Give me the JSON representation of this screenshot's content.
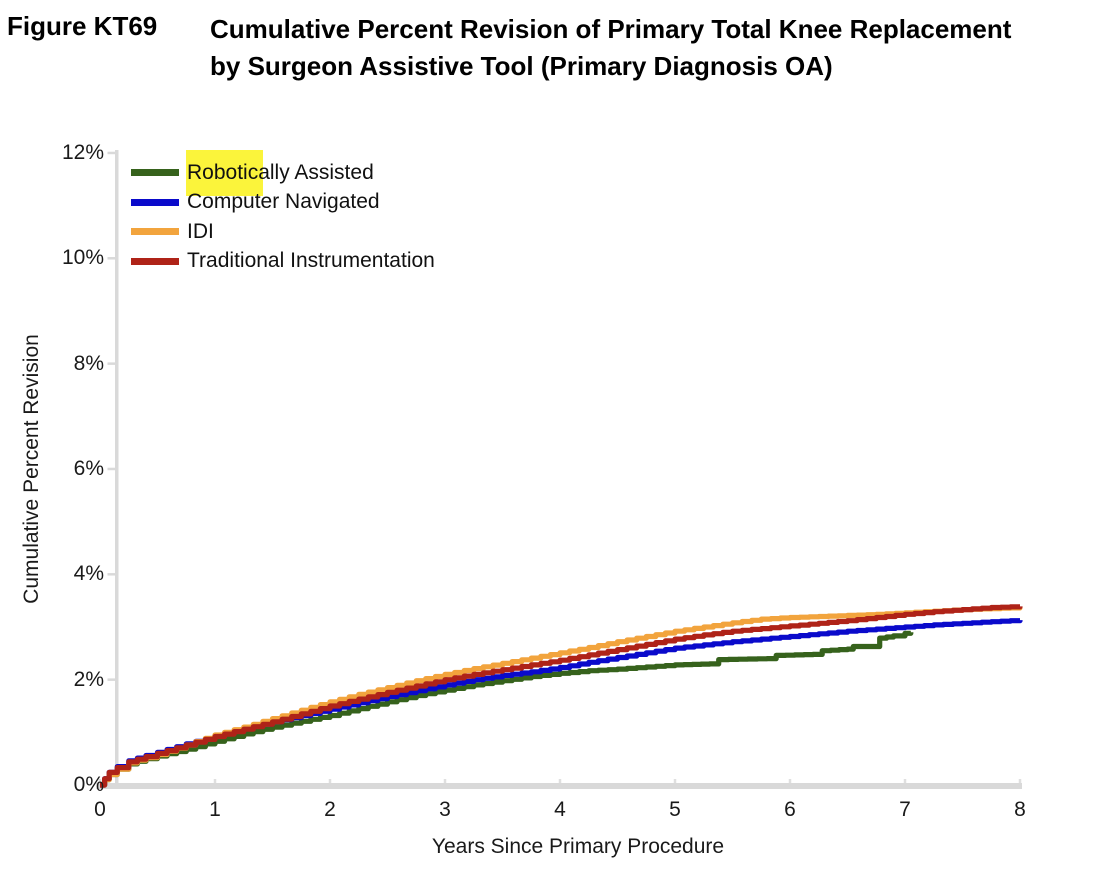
{
  "figure": {
    "label": "Figure KT69",
    "title_line1": "Cumulative Percent Revision of Primary Total Knee Replacement",
    "title_line2": "by Surgeon Assistive Tool (Primary Diagnosis OA)"
  },
  "legend": {
    "position": "top-left",
    "highlight_color": "#FBF43B",
    "highlighted_text": "Robotic",
    "items": [
      {
        "label": "Robotically Assisted",
        "color": "#36621C"
      },
      {
        "label": "Computer Navigated",
        "color": "#0A0ACB"
      },
      {
        "label": "IDI",
        "color": "#F2A43D"
      },
      {
        "label": "Traditional Instrumentation",
        "color": "#AF2318"
      }
    ]
  },
  "colors": {
    "axis_line": "#D9D9D9",
    "tick_mark": "#DFDFDF",
    "text": "#1a1a1a"
  },
  "chart_data": {
    "type": "line",
    "title": "Cumulative Percent Revision of Primary Total Knee Replacement by Surgeon Assistive Tool (Primary Diagnosis OA)",
    "xlabel": "Years Since Primary Procedure",
    "ylabel": "Cumulative Percent Revision",
    "xlim": [
      0,
      8
    ],
    "ylim": [
      0,
      12
    ],
    "grid": false,
    "x_ticks": [
      0,
      1,
      2,
      3,
      4,
      5,
      6,
      7,
      8
    ],
    "x_tick_labels": [
      "0",
      "1",
      "2",
      "3",
      "4",
      "5",
      "6",
      "7",
      "8"
    ],
    "y_ticks": [
      0,
      2,
      4,
      6,
      8,
      10,
      12
    ],
    "y_tick_labels": [
      "0%",
      "2%",
      "4%",
      "6%",
      "8%",
      "10%",
      "12%"
    ],
    "series": [
      {
        "name": "Robotically Assisted",
        "color": "#36621C",
        "points": [
          [
            0,
            0
          ],
          [
            0.04,
            0.1
          ],
          [
            0.08,
            0.2
          ],
          [
            0.15,
            0.3
          ],
          [
            0.25,
            0.4
          ],
          [
            0.4,
            0.5
          ],
          [
            0.5,
            0.55
          ],
          [
            0.75,
            0.68
          ],
          [
            1,
            0.83
          ],
          [
            1.25,
            0.97
          ],
          [
            1.5,
            1.1
          ],
          [
            1.75,
            1.21
          ],
          [
            2,
            1.32
          ],
          [
            2.25,
            1.45
          ],
          [
            2.5,
            1.58
          ],
          [
            2.75,
            1.7
          ],
          [
            3,
            1.8
          ],
          [
            3.25,
            1.9
          ],
          [
            3.5,
            1.98
          ],
          [
            3.75,
            2.06
          ],
          [
            4,
            2.12
          ],
          [
            4.25,
            2.17
          ],
          [
            4.5,
            2.2
          ],
          [
            4.75,
            2.24
          ],
          [
            5,
            2.28
          ],
          [
            5.3,
            2.3
          ],
          [
            5.38,
            2.38
          ],
          [
            5.8,
            2.4
          ],
          [
            5.88,
            2.46
          ],
          [
            6.2,
            2.48
          ],
          [
            6.28,
            2.55
          ],
          [
            6.5,
            2.58
          ],
          [
            6.55,
            2.63
          ],
          [
            6.72,
            2.63
          ],
          [
            6.78,
            2.79
          ],
          [
            6.9,
            2.83
          ],
          [
            7,
            2.88
          ],
          [
            7.05,
            2.9
          ]
        ]
      },
      {
        "name": "Computer Navigated",
        "color": "#0A0ACB",
        "points": [
          [
            0,
            0
          ],
          [
            0.04,
            0.12
          ],
          [
            0.08,
            0.24
          ],
          [
            0.15,
            0.35
          ],
          [
            0.25,
            0.46
          ],
          [
            0.4,
            0.56
          ],
          [
            0.5,
            0.62
          ],
          [
            0.75,
            0.78
          ],
          [
            1,
            0.93
          ],
          [
            1.25,
            1.07
          ],
          [
            1.5,
            1.2
          ],
          [
            1.75,
            1.32
          ],
          [
            2,
            1.44
          ],
          [
            2.25,
            1.56
          ],
          [
            2.5,
            1.68
          ],
          [
            2.75,
            1.79
          ],
          [
            3,
            1.9
          ],
          [
            3.25,
            2
          ],
          [
            3.5,
            2.08
          ],
          [
            3.75,
            2.15
          ],
          [
            4,
            2.23
          ],
          [
            4.25,
            2.33
          ],
          [
            4.5,
            2.42
          ],
          [
            4.75,
            2.51
          ],
          [
            5,
            2.6
          ],
          [
            5.25,
            2.66
          ],
          [
            5.5,
            2.72
          ],
          [
            5.75,
            2.77
          ],
          [
            6,
            2.82
          ],
          [
            6.25,
            2.87
          ],
          [
            6.5,
            2.92
          ],
          [
            6.75,
            2.96
          ],
          [
            7,
            3
          ],
          [
            7.25,
            3.04
          ],
          [
            7.5,
            3.07
          ],
          [
            7.75,
            3.1
          ],
          [
            8,
            3.13
          ]
        ]
      },
      {
        "name": "IDI",
        "color": "#F2A43D",
        "points": [
          [
            0,
            0
          ],
          [
            0.04,
            0.1
          ],
          [
            0.08,
            0.2
          ],
          [
            0.15,
            0.3
          ],
          [
            0.25,
            0.42
          ],
          [
            0.4,
            0.52
          ],
          [
            0.5,
            0.58
          ],
          [
            0.75,
            0.76
          ],
          [
            1,
            0.95
          ],
          [
            1.25,
            1.1
          ],
          [
            1.5,
            1.26
          ],
          [
            1.75,
            1.42
          ],
          [
            2,
            1.58
          ],
          [
            2.25,
            1.72
          ],
          [
            2.5,
            1.85
          ],
          [
            2.75,
            1.98
          ],
          [
            3,
            2.1
          ],
          [
            3.25,
            2.21
          ],
          [
            3.5,
            2.31
          ],
          [
            3.75,
            2.41
          ],
          [
            4,
            2.51
          ],
          [
            4.25,
            2.61
          ],
          [
            4.5,
            2.72
          ],
          [
            4.75,
            2.82
          ],
          [
            5,
            2.92
          ],
          [
            5.25,
            3.0
          ],
          [
            5.5,
            3.08
          ],
          [
            5.75,
            3.15
          ],
          [
            6,
            3.18
          ],
          [
            6.25,
            3.2
          ],
          [
            6.5,
            3.22
          ],
          [
            6.75,
            3.24
          ],
          [
            7,
            3.27
          ],
          [
            7.25,
            3.3
          ],
          [
            7.5,
            3.33
          ],
          [
            7.75,
            3.35
          ],
          [
            8,
            3.37
          ]
        ]
      },
      {
        "name": "Traditional Instrumentation",
        "color": "#AF2318",
        "points": [
          [
            0,
            0
          ],
          [
            0.04,
            0.12
          ],
          [
            0.08,
            0.24
          ],
          [
            0.15,
            0.33
          ],
          [
            0.25,
            0.44
          ],
          [
            0.4,
            0.54
          ],
          [
            0.5,
            0.6
          ],
          [
            0.75,
            0.76
          ],
          [
            1,
            0.92
          ],
          [
            1.25,
            1.06
          ],
          [
            1.5,
            1.2
          ],
          [
            1.75,
            1.35
          ],
          [
            2,
            1.5
          ],
          [
            2.25,
            1.63
          ],
          [
            2.5,
            1.76
          ],
          [
            2.75,
            1.88
          ],
          [
            3,
            2
          ],
          [
            3.25,
            2.1
          ],
          [
            3.5,
            2.19
          ],
          [
            3.75,
            2.28
          ],
          [
            4,
            2.37
          ],
          [
            4.25,
            2.47
          ],
          [
            4.5,
            2.57
          ],
          [
            4.75,
            2.67
          ],
          [
            5,
            2.77
          ],
          [
            5.25,
            2.85
          ],
          [
            5.5,
            2.92
          ],
          [
            5.75,
            2.97
          ],
          [
            6,
            3.02
          ],
          [
            6.25,
            3.07
          ],
          [
            6.5,
            3.12
          ],
          [
            6.75,
            3.18
          ],
          [
            7,
            3.24
          ],
          [
            7.25,
            3.29
          ],
          [
            7.5,
            3.33
          ],
          [
            7.75,
            3.37
          ],
          [
            8,
            3.39
          ]
        ]
      }
    ]
  }
}
